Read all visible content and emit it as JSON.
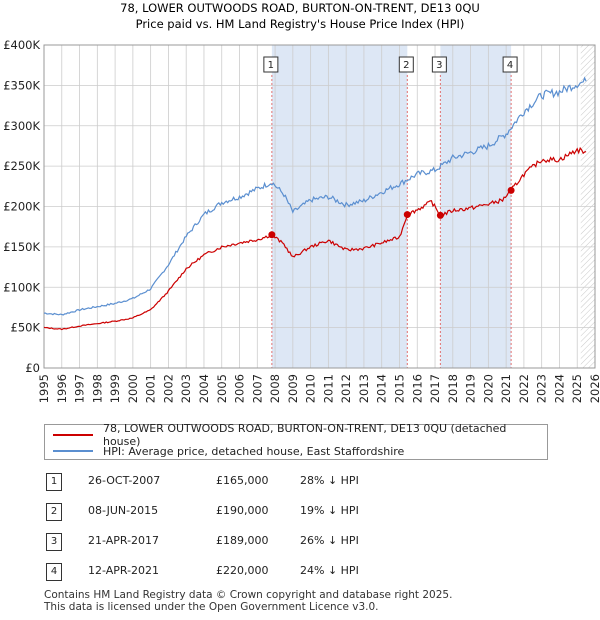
{
  "title_line1": "78, LOWER OUTWOODS ROAD, BURTON-ON-TRENT, DE13 0QU",
  "title_line2": "Price paid vs. HM Land Registry's House Price Index (HPI)",
  "colors": {
    "property": "#cc0000",
    "hpi": "#5b8fd0",
    "shade": "#dde7f5",
    "marker_line": "#e07070"
  },
  "chart_data": {
    "type": "line",
    "xlim": [
      1995,
      2026
    ],
    "ylim": [
      0,
      400000
    ],
    "y_ticks": [
      0,
      50000,
      100000,
      150000,
      200000,
      250000,
      300000,
      350000,
      400000
    ],
    "y_tick_labels": [
      "£0",
      "£50K",
      "£100K",
      "£150K",
      "£200K",
      "£250K",
      "£300K",
      "£350K",
      "£400K"
    ],
    "x_ticks": [
      1995,
      1996,
      1997,
      1998,
      1999,
      2000,
      2001,
      2002,
      2003,
      2004,
      2005,
      2006,
      2007,
      2008,
      2009,
      2010,
      2011,
      2012,
      2013,
      2014,
      2015,
      2016,
      2017,
      2018,
      2019,
      2020,
      2021,
      2022,
      2023,
      2024,
      2025,
      2026
    ],
    "shaded_ranges": [
      [
        2007.82,
        2015.44
      ],
      [
        2017.3,
        2021.28
      ]
    ],
    "forecast_start": 2025.2,
    "series": [
      {
        "name": "78, LOWER OUTWOODS ROAD, BURTON-ON-TRENT, DE13 0QU (detached house)",
        "x": [
          1995,
          1996,
          1997,
          1998,
          1999,
          2000,
          2001,
          2002,
          2003,
          2004,
          2005,
          2006,
          2007,
          2007.82,
          2008.5,
          2009,
          2010,
          2011,
          2012,
          2013,
          2014,
          2015,
          2015.44,
          2016,
          2016.8,
          2017.3,
          2018,
          2019,
          2020,
          2020.8,
          2021.28,
          2022,
          2023,
          2024,
          2025,
          2025.5
        ],
        "values": [
          50000,
          48000,
          52000,
          55000,
          58000,
          62000,
          72000,
          95000,
          123000,
          140000,
          150000,
          155000,
          159000,
          165000,
          153000,
          137000,
          150000,
          158000,
          146000,
          148000,
          155000,
          162000,
          190000,
          196000,
          206000,
          189000,
          195000,
          198000,
          203000,
          208000,
          220000,
          240000,
          258000,
          258000,
          270000,
          268000
        ]
      },
      {
        "name": "HPI: Average price, detached house, East Staffordshire",
        "x": [
          1995,
          1996,
          1997,
          1998,
          1999,
          2000,
          2001,
          2002,
          2003,
          2004,
          2005,
          2006,
          2007,
          2007.82,
          2008.5,
          2009,
          2010,
          2011,
          2012,
          2013,
          2014,
          2015,
          2016,
          2017,
          2018,
          2019,
          2020,
          2021,
          2022,
          2023,
          2024,
          2025,
          2025.5
        ],
        "values": [
          68000,
          66000,
          72000,
          76000,
          80000,
          86000,
          98000,
          128000,
          163000,
          190000,
          205000,
          212000,
          222000,
          230000,
          215000,
          193000,
          208000,
          212000,
          202000,
          207000,
          218000,
          228000,
          240000,
          245000,
          260000,
          267000,
          275000,
          290000,
          318000,
          338000,
          342000,
          352000,
          355000
        ]
      }
    ],
    "sales": [
      {
        "num": "1",
        "date": "26-OCT-2007",
        "x": 2007.82,
        "price": 165000,
        "price_label": "£165,000",
        "hpi": "28% ↓ HPI"
      },
      {
        "num": "2",
        "date": "08-JUN-2015",
        "x": 2015.44,
        "price": 190000,
        "price_label": "£190,000",
        "hpi": "19% ↓ HPI"
      },
      {
        "num": "3",
        "date": "21-APR-2017",
        "x": 2017.3,
        "price": 189000,
        "price_label": "£189,000",
        "hpi": "26% ↓ HPI"
      },
      {
        "num": "4",
        "date": "12-APR-2021",
        "x": 2021.28,
        "price": 220000,
        "price_label": "£220,000",
        "hpi": "24% ↓ HPI"
      }
    ]
  },
  "legend": {
    "property_label": "78, LOWER OUTWOODS ROAD, BURTON-ON-TRENT, DE13 0QU (detached house)",
    "hpi_label": "HPI: Average price, detached house, East Staffordshire"
  },
  "footer": {
    "line1": "Contains HM Land Registry data © Crown copyright and database right 2025.",
    "line2": "This data is licensed under the Open Government Licence v3.0."
  }
}
